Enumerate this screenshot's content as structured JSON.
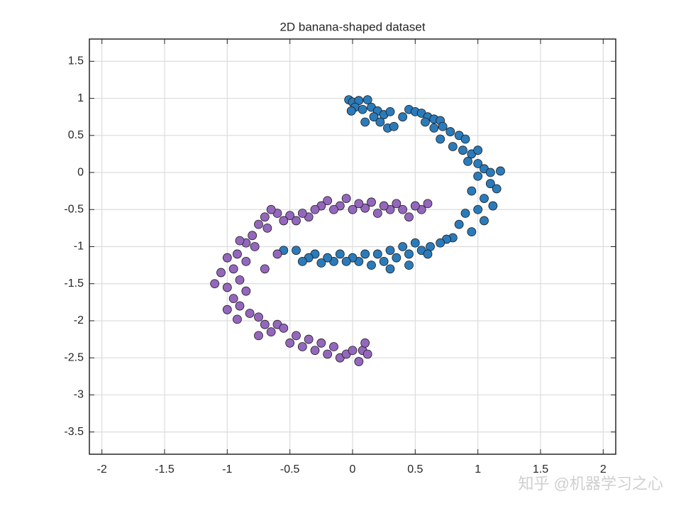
{
  "chart_data": {
    "type": "scatter",
    "title": "2D banana-shaped dataset",
    "xlim": [
      -2.1,
      2.1
    ],
    "ylim": [
      -3.8,
      1.8
    ],
    "xticks": [
      -2,
      -1.5,
      -1,
      -0.5,
      0,
      0.5,
      1,
      1.5,
      2
    ],
    "yticks": [
      -3.5,
      -3,
      -2.5,
      -2,
      -1.5,
      -1,
      -0.5,
      0,
      0.5,
      1,
      1.5
    ],
    "grid": true,
    "series": [
      {
        "color": "#2b7bba",
        "x": [
          -0.03,
          0.0,
          0.05,
          0.12,
          0.02,
          -0.01,
          0.08,
          0.15,
          0.2,
          0.25,
          0.3,
          0.17,
          0.1,
          0.22,
          0.28,
          0.33,
          0.4,
          0.45,
          0.5,
          0.55,
          0.6,
          0.65,
          0.7,
          0.72,
          0.58,
          0.65,
          0.78,
          0.85,
          0.9,
          0.7,
          0.8,
          0.88,
          0.95,
          1.0,
          0.92,
          1.0,
          1.05,
          1.1,
          1.18,
          1.0,
          1.1,
          1.15,
          0.95,
          1.05,
          1.12,
          1.0,
          0.9,
          1.05,
          0.85,
          0.95,
          0.8,
          0.75,
          0.7,
          0.62,
          0.55,
          0.5,
          0.45,
          0.4,
          0.35,
          0.3,
          0.25,
          0.2,
          0.15,
          0.1,
          0.05,
          0.0,
          -0.05,
          -0.1,
          -0.15,
          -0.2,
          -0.25,
          -0.3,
          -0.35,
          -0.4,
          -0.45,
          -0.55,
          0.45,
          0.6,
          0.3
        ],
        "values": [
          0.98,
          0.95,
          0.97,
          0.98,
          0.88,
          0.83,
          0.85,
          0.88,
          0.83,
          0.78,
          0.82,
          0.75,
          0.68,
          0.68,
          0.6,
          0.62,
          0.75,
          0.85,
          0.82,
          0.8,
          0.75,
          0.72,
          0.7,
          0.62,
          0.68,
          0.6,
          0.55,
          0.5,
          0.45,
          0.45,
          0.35,
          0.3,
          0.25,
          0.3,
          0.15,
          0.12,
          0.05,
          0.0,
          0.02,
          -0.05,
          -0.15,
          -0.22,
          -0.25,
          -0.35,
          -0.45,
          -0.5,
          -0.55,
          -0.65,
          -0.7,
          -0.8,
          -0.88,
          -0.9,
          -0.95,
          -1.0,
          -1.05,
          -0.95,
          -1.1,
          -1.0,
          -1.15,
          -1.05,
          -1.2,
          -1.1,
          -1.25,
          -1.1,
          -1.2,
          -1.15,
          -1.2,
          -1.1,
          -1.2,
          -1.15,
          -1.22,
          -1.1,
          -1.15,
          -1.2,
          -1.05,
          -1.05,
          -1.25,
          -1.1,
          -1.3
        ]
      },
      {
        "color": "#9467bd",
        "x": [
          0.6,
          0.55,
          0.5,
          0.45,
          0.4,
          0.35,
          0.3,
          0.25,
          0.2,
          0.15,
          0.1,
          0.05,
          0.0,
          -0.05,
          -0.1,
          -0.15,
          -0.2,
          -0.25,
          -0.3,
          -0.35,
          -0.4,
          -0.45,
          -0.5,
          -0.55,
          -0.6,
          -0.65,
          -0.7,
          -0.75,
          -0.68,
          -0.8,
          -0.85,
          -0.9,
          -0.78,
          -0.92,
          -1.0,
          -0.85,
          -0.95,
          -1.05,
          -0.9,
          -1.1,
          -1.0,
          -0.85,
          -0.95,
          -1.0,
          -0.9,
          -0.82,
          -0.92,
          -0.75,
          -0.7,
          -0.65,
          -0.75,
          -0.6,
          -0.55,
          -0.5,
          -0.45,
          -0.4,
          -0.35,
          -0.3,
          -0.25,
          -0.2,
          -0.15,
          -0.1,
          -0.05,
          0.0,
          0.05,
          0.08,
          0.12,
          0.1,
          -0.6,
          -0.7
        ],
        "values": [
          -0.42,
          -0.5,
          -0.45,
          -0.6,
          -0.5,
          -0.42,
          -0.5,
          -0.45,
          -0.55,
          -0.4,
          -0.48,
          -0.42,
          -0.5,
          -0.35,
          -0.45,
          -0.5,
          -0.38,
          -0.45,
          -0.5,
          -0.6,
          -0.55,
          -0.65,
          -0.58,
          -0.65,
          -0.55,
          -0.5,
          -0.6,
          -0.7,
          -0.75,
          -0.85,
          -0.95,
          -0.92,
          -1.0,
          -1.1,
          -1.15,
          -1.2,
          -1.3,
          -1.35,
          -1.45,
          -1.5,
          -1.55,
          -1.6,
          -1.7,
          -1.85,
          -1.8,
          -1.9,
          -1.98,
          -1.95,
          -2.05,
          -2.15,
          -2.2,
          -2.05,
          -2.1,
          -2.3,
          -2.2,
          -2.35,
          -2.25,
          -2.4,
          -2.3,
          -2.45,
          -2.35,
          -2.5,
          -2.45,
          -2.4,
          -2.55,
          -2.4,
          -2.45,
          -2.3,
          -1.1,
          -1.3
        ]
      }
    ]
  },
  "watermark": "知乎 @机器学习之心"
}
